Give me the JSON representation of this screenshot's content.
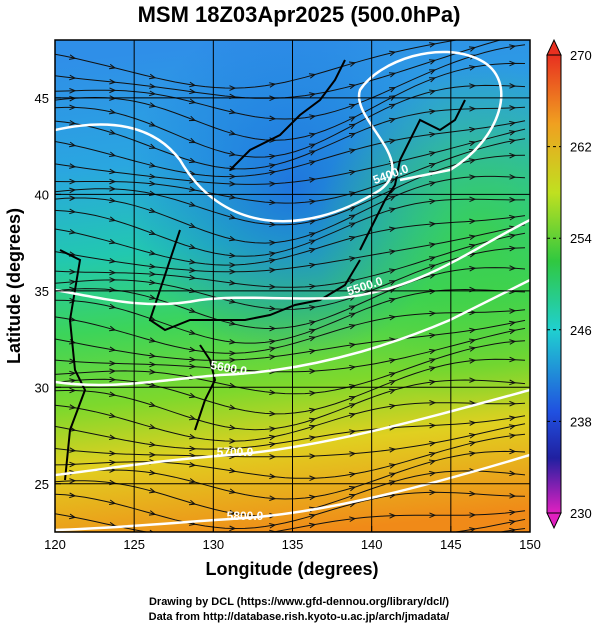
{
  "title": "MSM 18Z03Apr2025 (500.0hPa)",
  "x_axis": {
    "label": "Longitude (degrees)",
    "lim": [
      120,
      150
    ],
    "ticks": [
      120,
      125,
      130,
      135,
      140,
      145,
      150
    ]
  },
  "y_axis": {
    "label": "Latitude  (degrees)",
    "lim": [
      22.5,
      48
    ],
    "ticks": [
      25,
      30,
      35,
      40,
      45
    ]
  },
  "colorbar": {
    "lim": [
      230,
      270
    ],
    "ticks": [
      230,
      238,
      246,
      254,
      262,
      270
    ]
  },
  "contour_labels": [
    "5400.0",
    "5500.0",
    "5600.0",
    "5700.0",
    "5800.0"
  ],
  "footer": [
    "Drawing by DCL (https://www.gfd-dennou.org/library/dcl/)",
    "Data from http://database.rish.kyoto-u.ac.jp/arch/jmadata/"
  ]
}
